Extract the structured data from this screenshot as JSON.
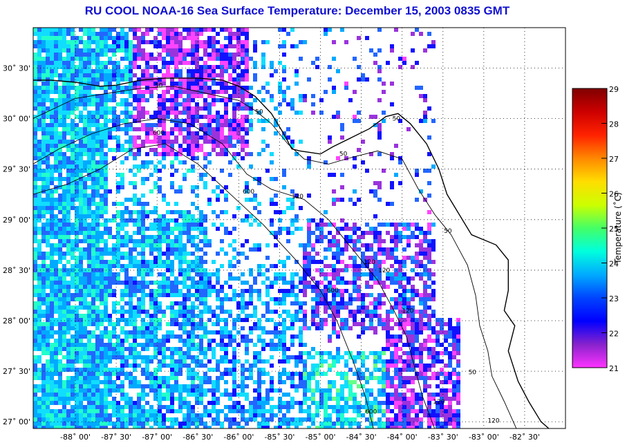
{
  "title": "RU COOL  NOAA-16  Sea Surface Temperature:  December 15, 2003 0835 GMT",
  "map": {
    "lat_range": [
      26.9333,
      30.9
    ],
    "lon_range": [
      -88.5167,
      -82.0
    ],
    "lat_ticks": [
      {
        "value": 30.5,
        "label": "30˚ 30'"
      },
      {
        "value": 30.0,
        "label": "30˚ 00'"
      },
      {
        "value": 29.5,
        "label": "29˚ 30'"
      },
      {
        "value": 29.0,
        "label": "29˚ 00'"
      },
      {
        "value": 28.5,
        "label": "28˚ 30'"
      },
      {
        "value": 28.0,
        "label": "28˚ 00'"
      },
      {
        "value": 27.5,
        "label": "27˚ 30'"
      },
      {
        "value": 27.0,
        "label": "27˚ 00'"
      }
    ],
    "lon_ticks": [
      {
        "value": -88.0,
        "label": "-88˚ 00'"
      },
      {
        "value": -87.5,
        "label": "-87˚ 30'"
      },
      {
        "value": -87.0,
        "label": "-87˚ 00'"
      },
      {
        "value": -86.5,
        "label": "-86˚ 30'"
      },
      {
        "value": -86.0,
        "label": "-86˚ 00'"
      },
      {
        "value": -85.5,
        "label": "-85˚ 30'"
      },
      {
        "value": -85.0,
        "label": "-85˚ 00'"
      },
      {
        "value": -84.5,
        "label": "-84˚ 30'"
      },
      {
        "value": -84.0,
        "label": "-84˚ 00'"
      },
      {
        "value": -83.5,
        "label": "-83˚ 30'"
      },
      {
        "value": -83.0,
        "label": "-83˚ 00'"
      },
      {
        "value": -82.5,
        "label": "-82˚ 30'"
      }
    ],
    "grid": "dotted",
    "land_color": "#ffffff",
    "coastline": [
      [
        -88.52,
        30.38
      ],
      [
        -88.3,
        30.38
      ],
      [
        -88.0,
        30.36
      ],
      [
        -87.7,
        30.32
      ],
      [
        -87.5,
        30.33
      ],
      [
        -87.2,
        30.38
      ],
      [
        -86.9,
        30.4
      ],
      [
        -86.5,
        30.4
      ],
      [
        -86.2,
        30.38
      ],
      [
        -86.0,
        30.32
      ],
      [
        -85.8,
        30.22
      ],
      [
        -85.6,
        30.05
      ],
      [
        -85.45,
        29.85
      ],
      [
        -85.35,
        29.7
      ],
      [
        -85.25,
        29.68
      ],
      [
        -85.0,
        29.65
      ],
      [
        -84.85,
        29.72
      ],
      [
        -84.6,
        29.82
      ],
      [
        -84.4,
        29.9
      ],
      [
        -84.2,
        30.02
      ],
      [
        -84.05,
        30.05
      ],
      [
        -83.9,
        29.95
      ],
      [
        -83.7,
        29.75
      ],
      [
        -83.55,
        29.5
      ],
      [
        -83.45,
        29.25
      ],
      [
        -83.3,
        29.05
      ],
      [
        -83.15,
        28.85
      ],
      [
        -82.85,
        28.75
      ],
      [
        -82.7,
        28.6
      ],
      [
        -82.7,
        28.3
      ],
      [
        -82.75,
        28.1
      ],
      [
        -82.62,
        27.95
      ],
      [
        -82.7,
        27.7
      ],
      [
        -82.58,
        27.4
      ],
      [
        -82.45,
        27.2
      ],
      [
        -82.3,
        27.0
      ],
      [
        -82.2,
        26.93
      ]
    ],
    "contours": [
      {
        "label": "50",
        "points": [
          [
            -88.52,
            30.0
          ],
          [
            -88.0,
            30.2
          ],
          [
            -87.6,
            30.25
          ],
          [
            -87.2,
            30.3
          ],
          [
            -86.8,
            30.32
          ],
          [
            -86.4,
            30.25
          ],
          [
            -86.0,
            30.18
          ],
          [
            -85.8,
            30.08
          ],
          [
            -85.6,
            29.95
          ],
          [
            -85.4,
            29.75
          ],
          [
            -85.2,
            29.6
          ],
          [
            -84.9,
            29.55
          ],
          [
            -84.6,
            29.62
          ],
          [
            -84.3,
            29.68
          ],
          [
            -84.0,
            29.6
          ],
          [
            -83.8,
            29.3
          ],
          [
            -83.6,
            29.05
          ],
          [
            -83.4,
            28.85
          ],
          [
            -83.2,
            28.55
          ],
          [
            -83.1,
            28.25
          ],
          [
            -83.05,
            27.95
          ],
          [
            -82.95,
            27.7
          ],
          [
            -82.9,
            27.45
          ],
          [
            -82.75,
            27.2
          ],
          [
            -82.6,
            26.93
          ]
        ]
      },
      {
        "label": "120",
        "points": [
          [
            -88.52,
            29.55
          ],
          [
            -88.2,
            29.7
          ],
          [
            -87.8,
            29.85
          ],
          [
            -87.4,
            29.95
          ],
          [
            -87.0,
            30.0
          ],
          [
            -86.6,
            29.95
          ],
          [
            -86.2,
            29.75
          ],
          [
            -85.9,
            29.45
          ],
          [
            -85.6,
            29.3
          ],
          [
            -85.2,
            29.2
          ],
          [
            -84.9,
            29.0
          ],
          [
            -84.6,
            28.7
          ],
          [
            -84.3,
            28.4
          ],
          [
            -84.1,
            28.1
          ],
          [
            -83.95,
            27.85
          ],
          [
            -83.85,
            27.55
          ],
          [
            -83.75,
            27.25
          ],
          [
            -83.6,
            26.93
          ]
        ]
      },
      {
        "label": "600",
        "points": [
          [
            -88.52,
            29.25
          ],
          [
            -88.1,
            29.35
          ],
          [
            -87.7,
            29.5
          ],
          [
            -87.3,
            29.7
          ],
          [
            -86.9,
            29.75
          ],
          [
            -86.5,
            29.55
          ],
          [
            -86.1,
            29.25
          ],
          [
            -85.7,
            28.95
          ],
          [
            -85.3,
            28.6
          ],
          [
            -85.0,
            28.3
          ],
          [
            -84.8,
            28.0
          ],
          [
            -84.6,
            27.6
          ],
          [
            -84.45,
            27.25
          ],
          [
            -84.35,
            26.93
          ]
        ]
      }
    ],
    "contour_labels": [
      {
        "text": "50",
        "lon": -86.98,
        "lat": 30.31
      },
      {
        "text": "50",
        "lon": -85.75,
        "lat": 30.05
      },
      {
        "text": "50",
        "lon": -84.72,
        "lat": 29.63
      },
      {
        "text": "50",
        "lon": -84.07,
        "lat": 29.98
      },
      {
        "text": "50",
        "lon": -83.44,
        "lat": 28.87
      },
      {
        "text": "50",
        "lon": -83.14,
        "lat": 27.47
      },
      {
        "text": "120",
        "lon": -85.28,
        "lat": 29.21
      },
      {
        "text": "120",
        "lon": -84.4,
        "lat": 28.56
      },
      {
        "text": "120",
        "lon": -84.22,
        "lat": 28.48
      },
      {
        "text": "120",
        "lon": -83.93,
        "lat": 28.08
      },
      {
        "text": "120",
        "lon": -83.55,
        "lat": 27.18
      },
      {
        "text": "120",
        "lon": -82.88,
        "lat": 26.99
      },
      {
        "text": "600",
        "lon": -85.88,
        "lat": 29.26
      },
      {
        "text": "600",
        "lon": -84.85,
        "lat": 28.28
      },
      {
        "text": "600",
        "lon": -84.38,
        "lat": 27.08
      },
      {
        "text": "600",
        "lon": -86.98,
        "lat": 29.84
      }
    ]
  },
  "colorbar": {
    "title": "Temperature (˚C)",
    "min": 21,
    "max": 29,
    "tick_labels": [
      "29",
      "28",
      "27",
      "26",
      "25",
      "24",
      "23",
      "22",
      "21"
    ],
    "tick_values": [
      29,
      28,
      27,
      26,
      25,
      24,
      23,
      22,
      21
    ],
    "stops": [
      "#ff33ff",
      "#8822cc",
      "#0000ff",
      "#0044ff",
      "#00aaff",
      "#00ffdd",
      "#44ff66",
      "#ccff00",
      "#ffdd00",
      "#ff8800",
      "#ff2200",
      "#cc0000",
      "#800000"
    ]
  }
}
